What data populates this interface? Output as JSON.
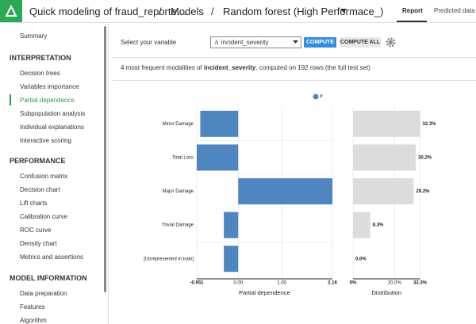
{
  "header": {
    "title": "Quick modeling of fraud_reporte…",
    "breadcrumbs": [
      "Models",
      "Random forest (High Performace_)"
    ],
    "tabs": [
      "Report",
      "Predicted data"
    ]
  },
  "sidebar": {
    "summary": "Summary",
    "sections": [
      {
        "title": "INTERPRETATION",
        "items": [
          "Decision trees",
          "Variables importance",
          "Partial dependence",
          "Subpopulation analysis",
          "Individual explanations",
          "Interactive scoring"
        ]
      },
      {
        "title": "PERFORMANCE",
        "items": [
          "Confusion matrix",
          "Decision chart",
          "Lift charts",
          "Calibration curve",
          "ROC curve",
          "Density chart",
          "Metrics and assertions"
        ]
      },
      {
        "title": "MODEL INFORMATION",
        "items": [
          "Data preparation",
          "Features",
          "Algorithm"
        ]
      }
    ]
  },
  "controls": {
    "label": "Select your variable",
    "variable": "incident_severity",
    "buttons": [
      "COMPUTE",
      "COMPUTE ALL"
    ]
  },
  "summary": {
    "prefix": "4 most frequent modalities of ",
    "variable": "incident_severity",
    "suffix": ", computed on 192 rows (the full test set)"
  },
  "chart_data": [
    {
      "type": "bar",
      "orientation": "horizontal",
      "categories": [
        "Minor Damage",
        "Total Loss",
        "Major Damage",
        "Trivial Damage",
        "[Unrepresented in train]"
      ],
      "series": [
        {
          "name": "Y",
          "color": "#4d86c0",
          "values": [
            -0.87,
            -0.951,
            2.16,
            -0.33,
            -0.33
          ]
        }
      ],
      "xlim": [
        -0.951,
        2.16
      ],
      "xticks": [
        -0.951,
        {
          "value": 0,
          "label": "0.00"
        },
        {
          "value": 1,
          "label": "1.00"
        },
        2.16
      ],
      "grid": true,
      "xlabel": "Partial dependence"
    },
    {
      "type": "bar",
      "orientation": "horizontal",
      "color": "#dcdcdc",
      "values": [
        32.3,
        30.2,
        29.2,
        8.3,
        0.0
      ],
      "value_labels": [
        "32.3%",
        "30.2%",
        "29.2%",
        "8.3%",
        "0.0%"
      ],
      "xlim": [
        0,
        32.3
      ],
      "xticks": [
        {
          "value": 0,
          "label": "0%"
        },
        {
          "value": 20,
          "label": "20.0%"
        },
        {
          "value": 32.3,
          "label": "32.3%"
        }
      ],
      "grid": true,
      "xlabel": "Distribution"
    }
  ]
}
